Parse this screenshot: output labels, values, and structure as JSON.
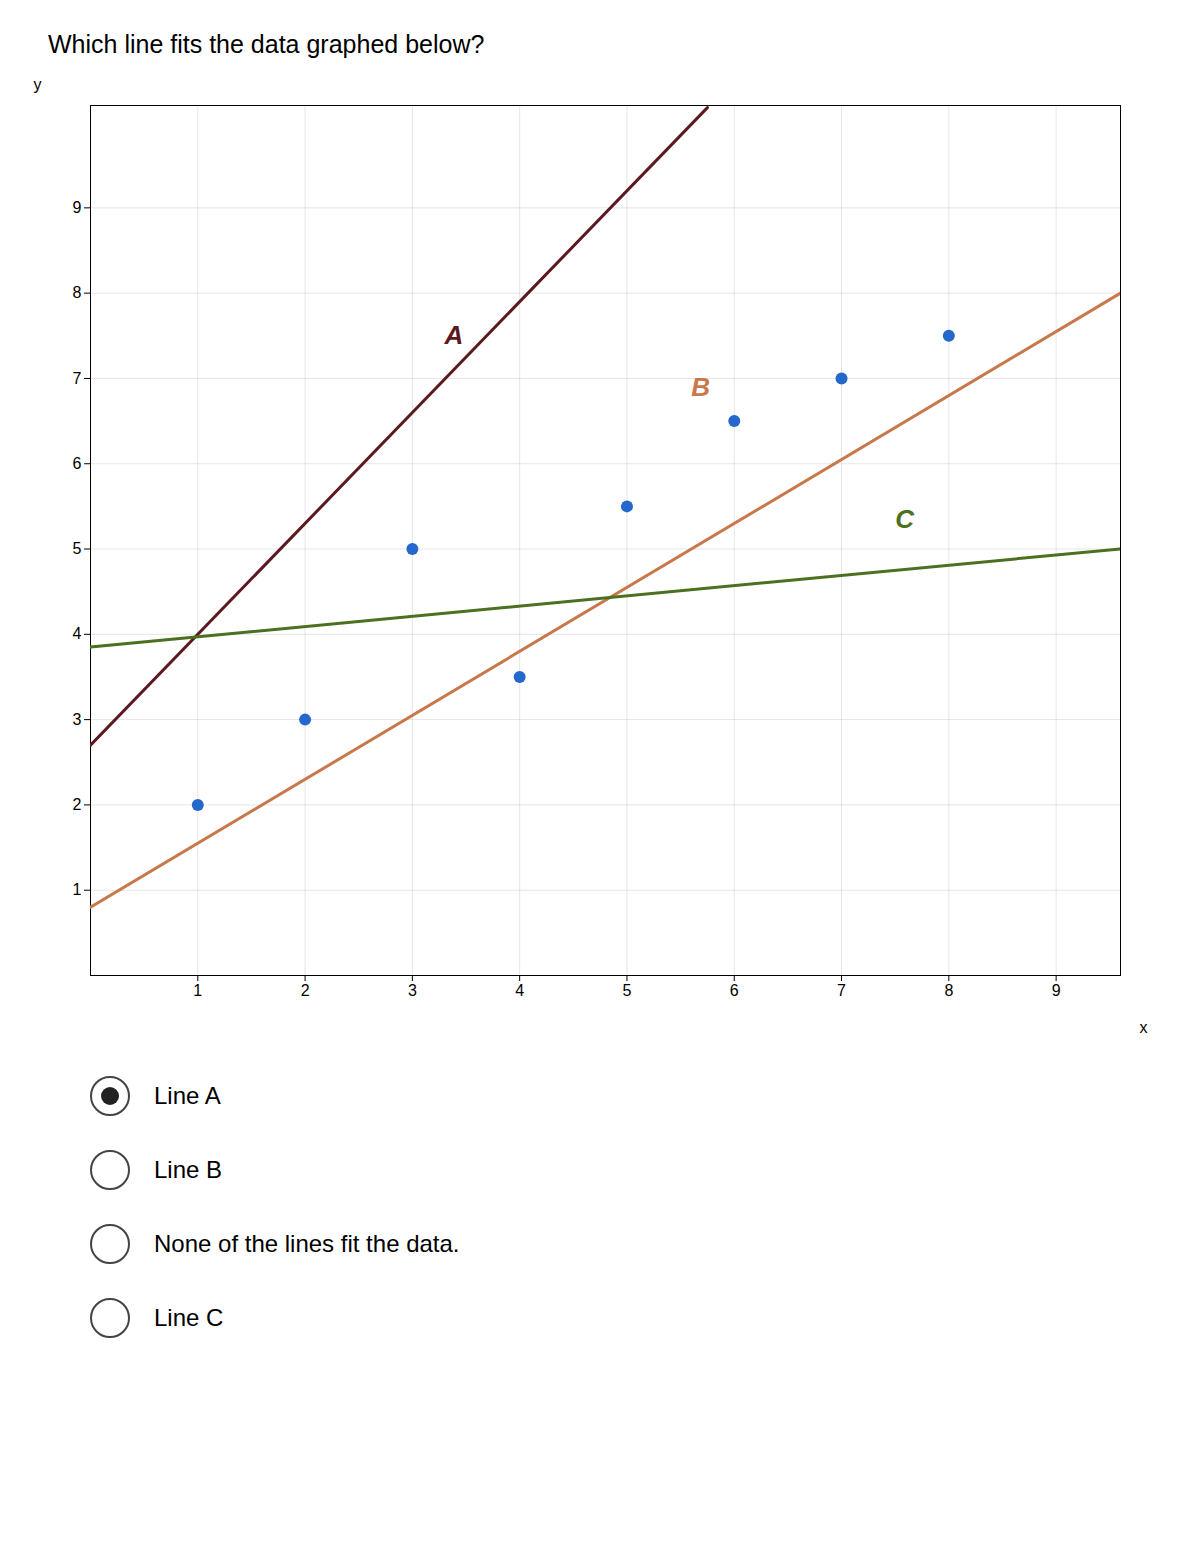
{
  "chart_data": {
    "type": "scatter",
    "title": "Which line fits the data graphed below?",
    "x_label": "x",
    "y_label": "y",
    "xlim": [
      0,
      9.6
    ],
    "ylim": [
      0,
      10.2
    ],
    "xticks": [
      1,
      2,
      3,
      4,
      5,
      6,
      7,
      8,
      9
    ],
    "yticks": [
      1,
      2,
      3,
      4,
      5,
      6,
      7,
      8,
      9
    ],
    "grid": true,
    "series": [
      {
        "name": "A",
        "type": "line",
        "color": "#5c1a20",
        "x": [
          0,
          5.75
        ],
        "values": [
          2.7,
          10.175
        ],
        "label_x": 3.3,
        "label_y": 7.4
      },
      {
        "name": "B",
        "type": "line",
        "color": "#c8784a",
        "x": [
          0,
          9.6
        ],
        "values": [
          0.8,
          8.0
        ],
        "label_x": 5.6,
        "label_y": 6.8
      },
      {
        "name": "C",
        "type": "line",
        "color": "#4a7020",
        "x": [
          0,
          9.6
        ],
        "values": [
          3.85,
          5.002
        ],
        "label_x": 7.5,
        "label_y": 5.25
      },
      {
        "type": "scatter",
        "color": "#2468cc",
        "x": [
          1,
          2,
          3,
          4,
          5,
          6,
          7,
          8
        ],
        "values": [
          2,
          3,
          5,
          3.5,
          5.5,
          6.5,
          7,
          7.5
        ]
      }
    ],
    "choices": [
      {
        "text": "Line A",
        "selected": true
      },
      {
        "text": "Line B",
        "selected": false
      },
      {
        "text": "None of the lines fit the data.",
        "selected": false
      },
      {
        "text": "Line C",
        "selected": false
      }
    ]
  }
}
